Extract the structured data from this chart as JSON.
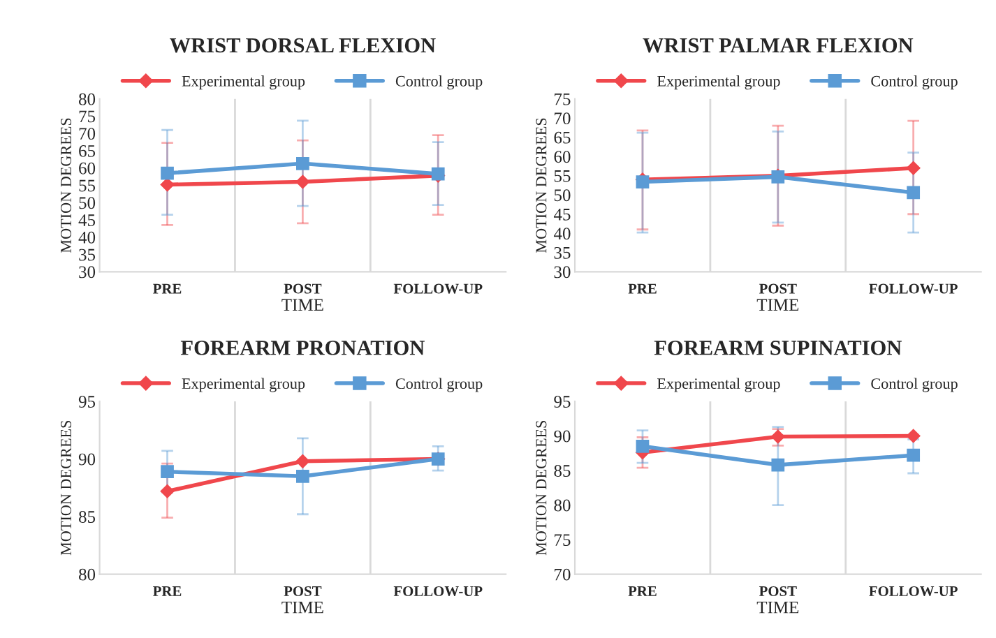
{
  "chart_data": [
    {
      "type": "line",
      "title": "WRIST DORSAL FLEXION",
      "xlabel": "TIME",
      "ylabel": "MOTION DEGREES",
      "categories": [
        "PRE",
        "POST",
        "FOLLOW-UP"
      ],
      "ylim": [
        30,
        80
      ],
      "yticks": [
        30,
        35,
        40,
        45,
        50,
        55,
        60,
        65,
        70,
        75,
        80
      ],
      "grid": "x",
      "legend": "top",
      "series": [
        {
          "name": "Experimental group",
          "color": "#f0474c",
          "marker": "diamond",
          "values": [
            55.2,
            56,
            57.8
          ],
          "errors": [
            [
              43.5,
              67.3
            ],
            [
              44,
              68
            ],
            [
              46.5,
              69.5
            ]
          ]
        },
        {
          "name": "Control group",
          "color": "#5b9bd5",
          "marker": "square",
          "values": [
            58.5,
            61.3,
            58.3
          ],
          "errors": [
            [
              46.5,
              71
            ],
            [
              49,
              73.7
            ],
            [
              49.3,
              67.5
            ]
          ]
        }
      ]
    },
    {
      "type": "line",
      "title": "WRIST PALMAR FLEXION",
      "xlabel": "TIME",
      "ylabel": "MOTION DEGREES",
      "categories": [
        "PRE",
        "POST",
        "FOLLOW-UP"
      ],
      "ylim": [
        30,
        75
      ],
      "yticks": [
        30,
        35,
        40,
        45,
        50,
        55,
        60,
        65,
        70,
        75
      ],
      "grid": "x",
      "legend": "top",
      "series": [
        {
          "name": "Experimental group",
          "color": "#f0474c",
          "marker": "diamond",
          "values": [
            54,
            55,
            57
          ],
          "errors": [
            [
              41,
              66.8
            ],
            [
              42,
              68
            ],
            [
              45,
              69.3
            ]
          ]
        },
        {
          "name": "Control group",
          "color": "#5b9bd5",
          "marker": "square",
          "values": [
            53.4,
            54.7,
            50.6
          ],
          "errors": [
            [
              40.2,
              66.2
            ],
            [
              42.8,
              66.5
            ],
            [
              40.2,
              61
            ]
          ]
        }
      ]
    },
    {
      "type": "line",
      "title": "FOREARM PRONATION",
      "xlabel": "TIME",
      "ylabel": "MOTION DEGREES",
      "categories": [
        "PRE",
        "POST",
        "FOLLOW-UP"
      ],
      "ylim": [
        80,
        95
      ],
      "yticks": [
        80,
        85,
        90,
        95
      ],
      "grid": "x",
      "legend": "top",
      "series": [
        {
          "name": "Experimental group",
          "color": "#f0474c",
          "marker": "diamond",
          "values": [
            87.2,
            89.8,
            90.0
          ],
          "errors": [
            [
              84.9,
              89.6
            ],
            null,
            null
          ]
        },
        {
          "name": "Control group",
          "color": "#5b9bd5",
          "marker": "square",
          "values": [
            88.9,
            88.5,
            90.0
          ],
          "errors": [
            [
              87.1,
              90.7
            ],
            [
              85.2,
              91.8
            ],
            [
              89.0,
              91.1
            ]
          ]
        }
      ]
    },
    {
      "type": "line",
      "title": "FOREARM SUPINATION",
      "xlabel": "TIME",
      "ylabel": "MOTION DEGREES",
      "categories": [
        "PRE",
        "POST",
        "FOLLOW-UP"
      ],
      "ylim": [
        70,
        95
      ],
      "yticks": [
        70,
        75,
        80,
        85,
        90,
        95
      ],
      "grid": "x",
      "legend": "top",
      "series": [
        {
          "name": "Experimental group",
          "color": "#f0474c",
          "marker": "diamond",
          "values": [
            87.6,
            89.9,
            90.0
          ],
          "errors": [
            [
              85.4,
              89.8
            ],
            [
              88.6,
              91.0
            ],
            null
          ]
        },
        {
          "name": "Control group",
          "color": "#5b9bd5",
          "marker": "square",
          "values": [
            88.5,
            85.8,
            87.2
          ],
          "errors": [
            [
              86.1,
              90.8
            ],
            [
              80.0,
              91.3
            ],
            [
              84.6,
              89.5
            ]
          ]
        }
      ]
    }
  ]
}
